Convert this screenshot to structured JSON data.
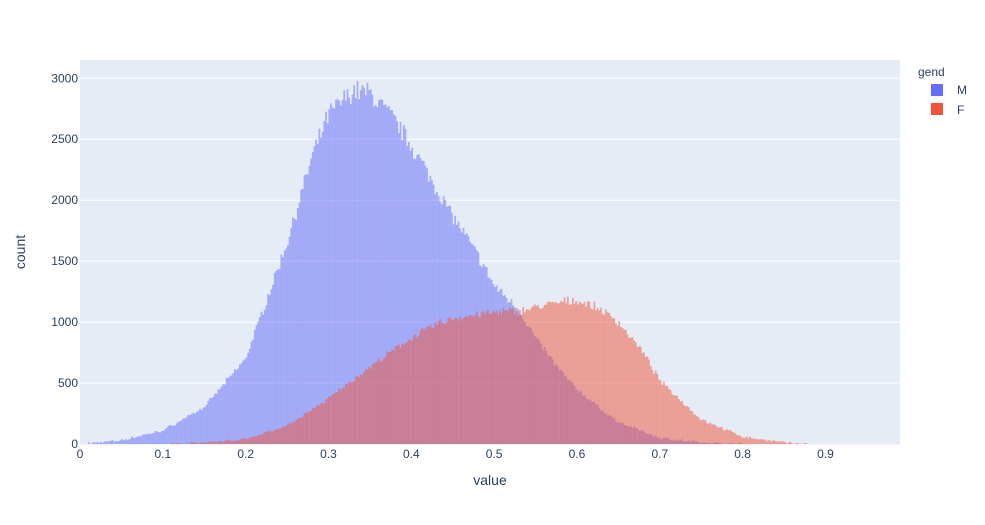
{
  "chart_data": {
    "type": "histogram",
    "barmode": "overlay",
    "xlabel": "value",
    "ylabel": "count",
    "xlim": [
      0,
      0.99
    ],
    "ylim": [
      0,
      3150
    ],
    "bin_width": 0.002,
    "x_ticks": [
      "0",
      "0.1",
      "0.2",
      "0.3",
      "0.4",
      "0.5",
      "0.6",
      "0.7",
      "0.8",
      "0.9"
    ],
    "y_ticks": [
      "0",
      "500",
      "1000",
      "1500",
      "2000",
      "2500",
      "3000"
    ],
    "grid": true,
    "legend": {
      "title": "gend",
      "position": "top-right"
    },
    "series": [
      {
        "name": "M",
        "color": "#636efa",
        "opacity": 0.5,
        "profile_x": [
          0.01,
          0.05,
          0.1,
          0.15,
          0.2,
          0.25,
          0.28,
          0.3,
          0.33,
          0.35,
          0.38,
          0.4,
          0.43,
          0.45,
          0.48,
          0.5,
          0.53,
          0.55,
          0.58,
          0.6,
          0.63,
          0.65,
          0.7,
          0.75,
          0.8
        ],
        "profile_count": [
          5,
          30,
          110,
          300,
          700,
          1650,
          2350,
          2700,
          2900,
          2880,
          2650,
          2450,
          2100,
          1870,
          1550,
          1300,
          1100,
          870,
          600,
          450,
          280,
          180,
          50,
          10,
          0
        ]
      },
      {
        "name": "F",
        "color": "#ef553b",
        "opacity": 0.5,
        "profile_x": [
          0.1,
          0.15,
          0.2,
          0.25,
          0.3,
          0.35,
          0.4,
          0.43,
          0.45,
          0.5,
          0.53,
          0.55,
          0.58,
          0.6,
          0.63,
          0.65,
          0.68,
          0.7,
          0.75,
          0.8,
          0.85,
          0.88
        ],
        "profile_count": [
          0,
          10,
          40,
          150,
          370,
          630,
          870,
          980,
          1030,
          1080,
          1090,
          1120,
          1160,
          1180,
          1100,
          1000,
          750,
          520,
          200,
          60,
          10,
          0
        ]
      }
    ]
  }
}
